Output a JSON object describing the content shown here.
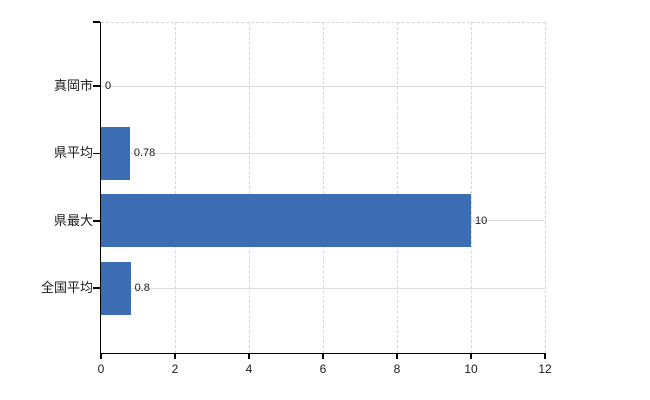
{
  "chart": {
    "background": "#ffffff",
    "bar_color": "#3c6cb1",
    "grid_color": "#d9d9d9",
    "axis_color": "#000000",
    "text_color": "#1a1a1a"
  },
  "chart_data": {
    "type": "bar",
    "orientation": "horizontal",
    "title": "",
    "xlabel": "",
    "ylabel": "",
    "categories": [
      "真岡市",
      "県平均",
      "県最大",
      "全国平均"
    ],
    "values": [
      0,
      0.78,
      10,
      0.8
    ],
    "value_labels": [
      "0",
      "0.78",
      "10",
      "0.8"
    ],
    "x_ticks": [
      0,
      2,
      4,
      6,
      8,
      10,
      12
    ],
    "x_tick_labels": [
      "0",
      "2",
      "4",
      "6",
      "8",
      "10",
      "12"
    ],
    "xlim": [
      0,
      12
    ],
    "grid": "on",
    "legend": "none"
  }
}
